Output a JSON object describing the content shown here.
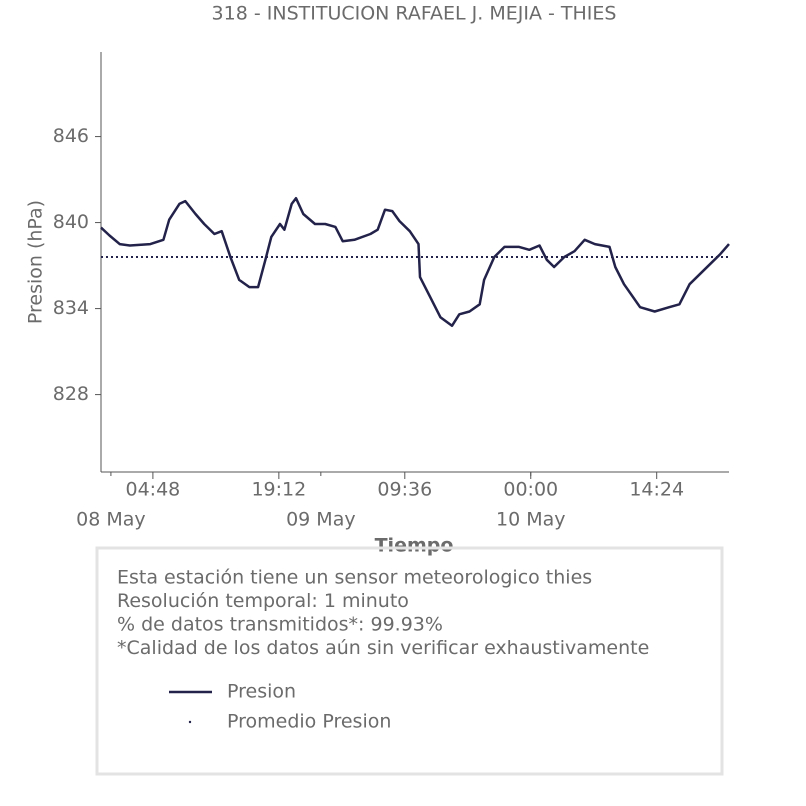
{
  "chart_data": {
    "type": "line",
    "title": "318 - INSTITUCION RAFAEL J. MEJIA - THIES",
    "x_label": "Tiempo",
    "y_label": "Presion (hPa)",
    "series": [
      {
        "name": "Presion",
        "color": "#22224a",
        "x": [
          "07 May 22:52",
          "07 May 23:50",
          "08 May 01:00",
          "08 May 02:10",
          "08 May 04:30",
          "08 May 06:00",
          "08 May 06:40",
          "08 May 07:50",
          "08 May 08:30",
          "08 May 09:40",
          "08 May 10:40",
          "08 May 11:50",
          "08 May 12:40",
          "08 May 13:40",
          "08 May 14:40",
          "08 May 15:50",
          "08 May 16:50",
          "08 May 17:40",
          "08 May 18:20",
          "08 May 19:20",
          "08 May 19:50",
          "08 May 20:40",
          "08 May 21:10",
          "08 May 22:00",
          "08 May 23:20",
          "09 May 00:30",
          "09 May 01:40",
          "09 May 02:30",
          "09 May 03:50",
          "09 May 05:40",
          "09 May 06:30",
          "09 May 07:20",
          "09 May 08:10",
          "09 May 09:00",
          "09 May 10:10",
          "09 May 11:10",
          "09 May 11:20",
          "09 May 12:30",
          "09 May 13:40",
          "09 May 15:00",
          "09 May 15:50",
          "09 May 17:00",
          "09 May 18:10",
          "09 May 18:40",
          "09 May 19:50",
          "09 May 21:00",
          "09 May 22:40",
          "09 May 23:50",
          "10 May 01:00",
          "10 May 01:50",
          "10 May 02:40",
          "10 May 03:50",
          "10 May 05:00",
          "10 May 06:10",
          "10 May 07:20",
          "10 May 09:00",
          "10 May 09:40",
          "10 May 10:40",
          "10 May 12:30",
          "10 May 14:10",
          "10 May 15:50",
          "10 May 17:00",
          "10 May 18:10",
          "10 May 19:20",
          "10 May 20:30",
          "10 May 21:40",
          "10 May 22:40"
        ],
        "values": [
          839.65,
          839.1,
          838.5,
          838.4,
          838.5,
          838.8,
          840.2,
          841.3,
          841.5,
          840.6,
          839.9,
          839.2,
          839.4,
          837.6,
          836.0,
          835.5,
          835.5,
          837.4,
          839.0,
          839.9,
          839.5,
          841.3,
          841.7,
          840.6,
          839.9,
          839.9,
          839.7,
          838.7,
          838.8,
          839.2,
          839.5,
          840.9,
          840.8,
          840.1,
          839.4,
          838.5,
          836.2,
          834.8,
          833.4,
          832.8,
          833.6,
          833.8,
          834.3,
          836.0,
          837.6,
          838.3,
          838.3,
          838.1,
          838.4,
          837.4,
          836.9,
          837.6,
          838.0,
          838.8,
          838.5,
          838.3,
          836.9,
          835.7,
          834.1,
          833.8,
          834.1,
          834.3,
          835.7,
          836.4,
          837.1,
          837.8,
          838.5
        ]
      }
    ],
    "mean_line": {
      "name": "Promedio Presion",
      "color": "#22224a",
      "value": 837.6
    },
    "xlim": [
      "07 May 22:52",
      "10 May 22:40"
    ],
    "xticks": [
      {
        "value": "08 May 04:48",
        "label": "04:48"
      },
      {
        "value": "08 May 19:12",
        "label": "19:12"
      },
      {
        "value": "09 May 09:36",
        "label": "09:36"
      },
      {
        "value": "10 May 00:00",
        "label": "00:00"
      },
      {
        "value": "10 May 14:24",
        "label": "14:24"
      }
    ],
    "xticks_minor": [
      {
        "value": "08 May 00:00",
        "label": "08 May"
      },
      {
        "value": "09 May 00:00",
        "label": "09 May"
      },
      {
        "value": "10 May 00:00",
        "label": "10 May"
      }
    ],
    "ylim": [
      822.6,
      851.9
    ],
    "yticks": [
      828,
      834,
      840,
      846
    ],
    "notes": [
      "Esta estación tiene un sensor meteorologico thies",
      "Resolución temporal: 1 minuto",
      "% de datos transmitidos*: 99.93%",
      "*Calidad de los datos aún sin verificar exhaustivamente"
    ]
  }
}
